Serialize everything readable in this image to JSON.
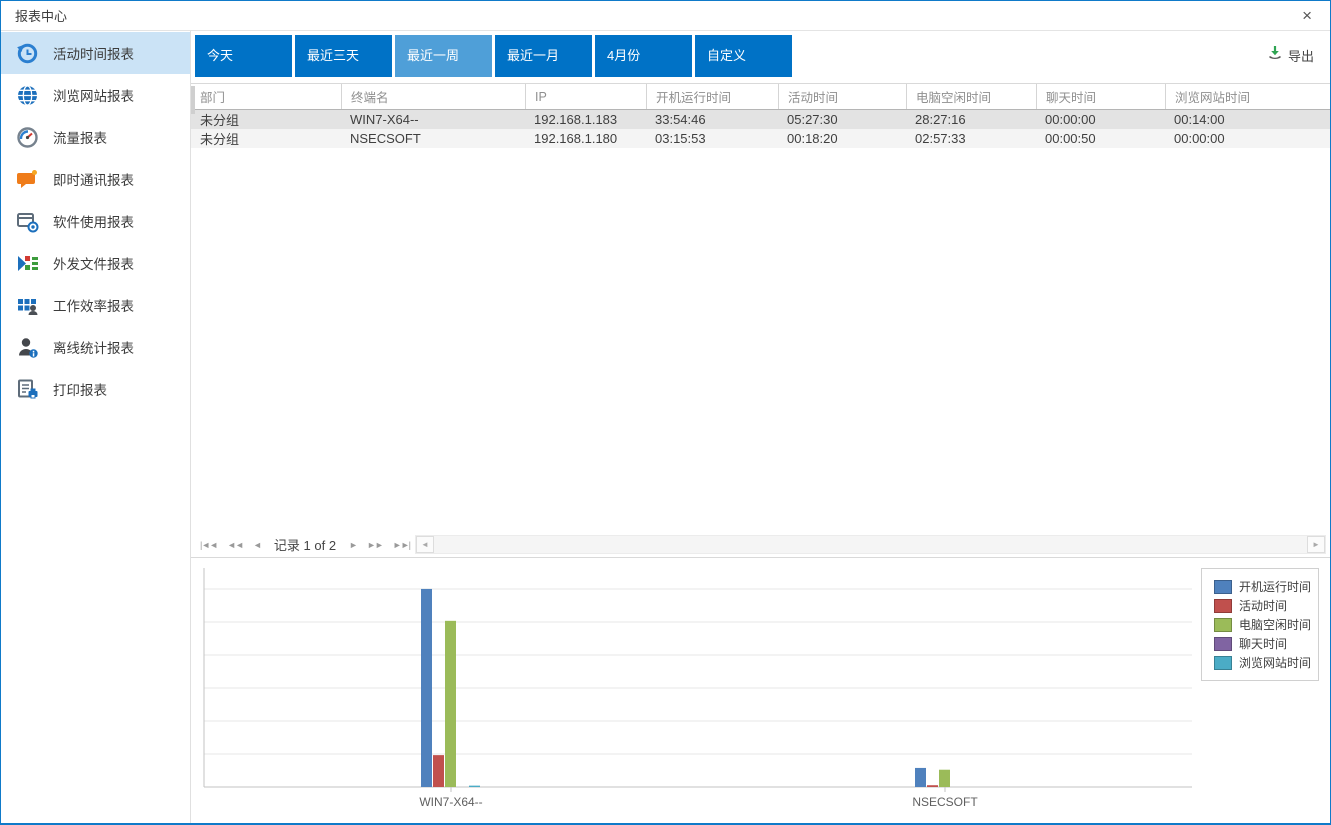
{
  "window": {
    "title": "报表中心",
    "close_glyph": "×"
  },
  "sidebar": {
    "selected_index": 0,
    "items": [
      {
        "label": "活动时间报表",
        "icon": "history-clock-icon"
      },
      {
        "label": "浏览网站报表",
        "icon": "globe-icon"
      },
      {
        "label": "流量报表",
        "icon": "gauge-icon"
      },
      {
        "label": "即时通讯报表",
        "icon": "chat-bubble-icon"
      },
      {
        "label": "软件使用报表",
        "icon": "software-window-icon"
      },
      {
        "label": "外发文件报表",
        "icon": "outgoing-file-icon"
      },
      {
        "label": "工作效率报表",
        "icon": "efficiency-blocks-icon"
      },
      {
        "label": "离线统计报表",
        "icon": "offline-user-icon"
      },
      {
        "label": "打印报表",
        "icon": "print-report-icon"
      }
    ]
  },
  "toolbar": {
    "selected_index": 2,
    "tabs": [
      "今天",
      "最近三天",
      "最近一周",
      "最近一月",
      "4月份",
      "自定义"
    ],
    "export_label": "导出",
    "export_icon": "download-icon",
    "accent_color": "#0072c6",
    "selected_color": "#4f9fd8"
  },
  "table": {
    "columns": [
      "部门",
      "终端名",
      "IP",
      "开机运行时间",
      "活动时间",
      "电脑空闲时间",
      "聊天时间",
      "浏览网站时间"
    ],
    "selected_row": 0,
    "rows": [
      [
        "未分组",
        "WIN7-X64--",
        "192.168.1.183",
        "33:54:46",
        "05:27:30",
        "28:27:16",
        "00:00:00",
        "00:14:00"
      ],
      [
        "未分组",
        "NSECSOFT",
        "192.168.1.180",
        "03:15:53",
        "00:18:20",
        "02:57:33",
        "00:00:50",
        "00:00:00"
      ]
    ]
  },
  "pager": {
    "record_text": "记录 1 of 2",
    "nav_buttons": [
      {
        "name": "first-record-button",
        "glyph": "|◄◄"
      },
      {
        "name": "prev-page-button",
        "glyph": "◄◄"
      },
      {
        "name": "prev-record-button",
        "glyph": "◄"
      },
      {
        "name": "next-record-button",
        "glyph": "►"
      },
      {
        "name": "next-page-button",
        "glyph": "►►"
      },
      {
        "name": "last-record-button",
        "glyph": "►►|"
      }
    ],
    "hscroll_left_glyph": "◄",
    "hscroll_right_glyph": "►"
  },
  "chart_data": {
    "type": "bar",
    "title": "",
    "xlabel": "",
    "ylabel": "",
    "categories": [
      "WIN7-X64--",
      "NSECSOFT"
    ],
    "series": [
      {
        "name": "开机运行时间",
        "color": "#4F81BD",
        "values_hours": [
          33.913,
          3.265
        ],
        "values_display": [
          "33:54:46",
          "03:15:53"
        ]
      },
      {
        "name": "活动时间",
        "color": "#C0504D",
        "values_hours": [
          5.458,
          0.306
        ],
        "values_display": [
          "05:27:30",
          "00:18:20"
        ]
      },
      {
        "name": "电脑空闲时间",
        "color": "#9BBB59",
        "values_hours": [
          28.454,
          2.959
        ],
        "values_display": [
          "28:27:16",
          "02:57:33"
        ]
      },
      {
        "name": "聊天时间",
        "color": "#8064A2",
        "values_hours": [
          0.0,
          0.014
        ],
        "values_display": [
          "00:00:00",
          "00:00:50"
        ]
      },
      {
        "name": "浏览网站时间",
        "color": "#4BACC6",
        "values_hours": [
          0.233,
          0.0
        ],
        "values_display": [
          "00:14:00",
          "00:00:00"
        ]
      }
    ],
    "ylim_hours": [
      0,
      37.5
    ],
    "gridlines": 6,
    "grid_on": true,
    "y_tick_labels_visible": false,
    "legend_position": "right"
  }
}
